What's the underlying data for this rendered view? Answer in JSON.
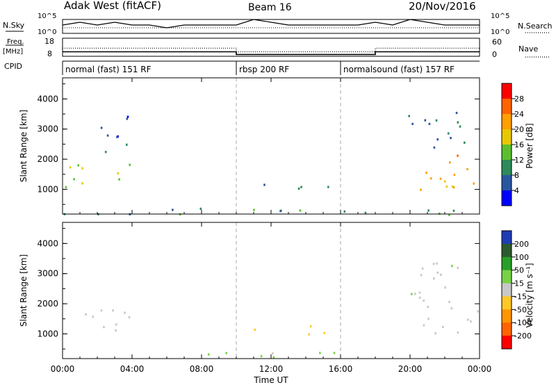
{
  "header": {
    "radar": "Adak West (fitACF)",
    "beam": "Beam 16",
    "date": "20/Nov/2016"
  },
  "panels": {
    "nsky": {
      "left_label": "N.Sky",
      "right_label": "N.Search",
      "left_ticks": [
        "10^5",
        "10^0"
      ],
      "right_ticks": [
        "10^5",
        "10^0"
      ]
    },
    "freq": {
      "left_label_top": "Freq.",
      "left_label_bottom": "[MHz]",
      "right_label": "Nave",
      "left_ticks": [
        "18",
        "8"
      ],
      "right_ticks": [
        "60",
        "0"
      ]
    },
    "cpid": {
      "label": "CPID",
      "segments": [
        {
          "label": "normal (fast) 151 RF",
          "start_hour": 0
        },
        {
          "label": "rbsp 200 RF",
          "start_hour": 10
        },
        {
          "label": "normalsound (fast) 157 RF",
          "start_hour": 16
        }
      ]
    }
  },
  "colorbars": {
    "power": {
      "label": "Power [dB]",
      "ticks": [
        "28",
        "24",
        "20",
        "16",
        "12",
        "8",
        "4"
      ],
      "colors": [
        "#ff0000",
        "#ff6400",
        "#ffa000",
        "#e8c800",
        "#5abf30",
        "#2e8a5a",
        "#2a56a0",
        "#0000ff"
      ]
    },
    "velocity": {
      "label": "Velocity [m s⁻¹]",
      "ticks": [
        "200",
        "100",
        "50",
        "15",
        "-15",
        "-50",
        "-100",
        "-200"
      ],
      "colors": [
        "#1e3cb4",
        "#2d5a2d",
        "#28a028",
        "#78d246",
        "#c8c8c8",
        "#ffc828",
        "#ff9600",
        "#ff6400",
        "#ff0000"
      ]
    }
  },
  "chart_data": [
    {
      "type": "line",
      "title": "N.Sky / N.Search",
      "x_hours": [
        0,
        1,
        2,
        3,
        4,
        5,
        6,
        7,
        8,
        9,
        10,
        11,
        12,
        13,
        14,
        15,
        16,
        17,
        18,
        19,
        20,
        21,
        22,
        23,
        24
      ],
      "series": [
        {
          "name": "N.Sky",
          "values": [
            3,
            4,
            3,
            4,
            3,
            3,
            2,
            3,
            3,
            3,
            3,
            5,
            4,
            3,
            3,
            3,
            3,
            3,
            4,
            3,
            5,
            4,
            3,
            3,
            3
          ]
        },
        {
          "name": "N.Search",
          "values": [
            2,
            2,
            2,
            2,
            2,
            2,
            2,
            2,
            2,
            2,
            2,
            2,
            2,
            2,
            2,
            2,
            2,
            2,
            2,
            2,
            2,
            2,
            2,
            2,
            2
          ]
        }
      ],
      "ylim_log10": [
        0,
        5
      ]
    },
    {
      "type": "line",
      "title": "Freq / Nave",
      "steps": [
        {
          "start_hour": 0,
          "end_hour": 10,
          "freq_mhz": 10.5,
          "nave": 27
        },
        {
          "start_hour": 10,
          "end_hour": 18,
          "freq_mhz": 9.0,
          "nave": 15
        },
        {
          "start_hour": 18,
          "end_hour": 24,
          "freq_mhz": 10.5,
          "nave": 27
        }
      ],
      "freq_ylim": [
        8,
        18
      ],
      "nave_ylim": [
        0,
        60
      ]
    },
    {
      "type": "heatmap",
      "title": "Power",
      "xlabel": "",
      "ylabel": "Slant Range [km]",
      "x_ticks": [
        "00:00",
        "04:00",
        "08:00",
        "12:00",
        "16:00",
        "20:00",
        "00:00"
      ],
      "y_ticks": [
        "1000",
        "2000",
        "3000",
        "4000"
      ],
      "ylim_km": [
        180,
        4700
      ],
      "xlim_hours": [
        0,
        24
      ],
      "regions": [
        {
          "t0": 0.0,
          "t1": 4.1,
          "r0": 1100,
          "r1": 1900,
          "value_db": 16
        },
        {
          "t0": 2.0,
          "t1": 3.8,
          "r0": 2000,
          "r1": 3550,
          "value_db": 6
        },
        {
          "t0": 11.0,
          "t1": 15.5,
          "r0": 1000,
          "r1": 1350,
          "value_db": 8
        },
        {
          "t0": 20.4,
          "t1": 24.0,
          "r0": 1000,
          "r1": 2300,
          "value_db": 22
        },
        {
          "t0": 19.8,
          "t1": 23.5,
          "r0": 2300,
          "r1": 3600,
          "value_db": 8
        },
        {
          "t0": 0.0,
          "t1": 24.0,
          "r0": 180,
          "r1": 420,
          "value_db": 10
        }
      ]
    },
    {
      "type": "heatmap",
      "title": "Velocity",
      "xlabel": "Time UT",
      "ylabel": "Slant Range [km]",
      "x_ticks": [
        "00:00",
        "04:00",
        "08:00",
        "12:00",
        "16:00",
        "20:00",
        "00:00"
      ],
      "y_ticks": [
        "1000",
        "2000",
        "3000",
        "4000"
      ],
      "ylim_km": [
        180,
        4700
      ],
      "xlim_hours": [
        0,
        24
      ],
      "regions": [
        {
          "t0": 0.0,
          "t1": 4.1,
          "r0": 1100,
          "r1": 1900,
          "value_ms": 0
        },
        {
          "t0": 11.0,
          "t1": 15.5,
          "r0": 1000,
          "r1": 1350,
          "value_ms": -40
        },
        {
          "t0": 20.4,
          "t1": 24.0,
          "r0": 1000,
          "r1": 2300,
          "value_ms": 0
        },
        {
          "t0": 19.8,
          "t1": 23.5,
          "r0": 2300,
          "r1": 3600,
          "value_ms": 10
        },
        {
          "t0": 8.0,
          "t1": 18.0,
          "r0": 180,
          "r1": 420,
          "value_ms": 25
        }
      ]
    }
  ]
}
